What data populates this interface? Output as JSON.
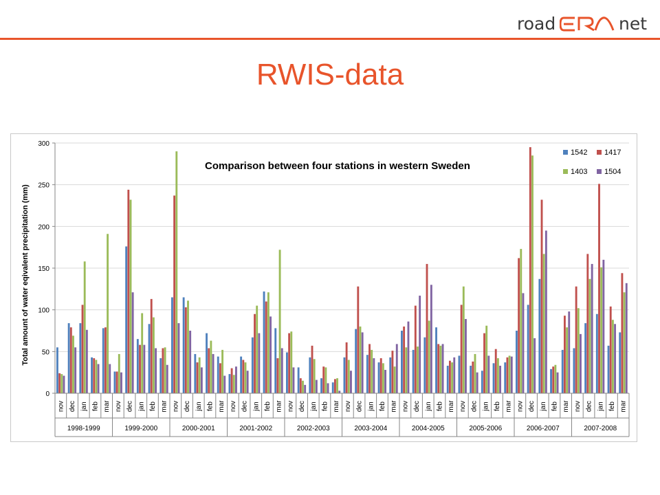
{
  "logo": {
    "left_text": "road",
    "right_text": "net",
    "mark_name": "road-era-net-logo-mark",
    "accent_color": "#e8542b"
  },
  "slide": {
    "title": "RWIS-data",
    "title_color": "#e8542b"
  },
  "chart_data": {
    "type": "bar",
    "title": "Comparison between four stations in western Sweden",
    "ylabel": "Total amount of water eqivalent precipitation (mm)",
    "xlabel": "",
    "ylim": [
      0,
      300
    ],
    "yticks": [
      0,
      50,
      100,
      150,
      200,
      250,
      300
    ],
    "grid": true,
    "legend_position": "top-right",
    "months": [
      "nov",
      "dec",
      "jan",
      "feb",
      "mar"
    ],
    "seasons": [
      "1998-1999",
      "1999-2000",
      "2000-2001",
      "2001-2002",
      "2002-2003",
      "2003-2004",
      "2004-2005",
      "2005-2006",
      "2006-2007",
      "2007-2008"
    ],
    "series": [
      {
        "name": "1542",
        "color": "#4f81bd",
        "values": [
          55,
          84,
          84,
          43,
          78,
          26,
          176,
          65,
          83,
          42,
          115,
          115,
          47,
          72,
          44,
          23,
          44,
          67,
          122,
          78,
          49,
          31,
          43,
          18,
          13,
          43,
          77,
          46,
          37,
          43,
          75,
          52,
          67,
          79,
          33,
          45,
          33,
          27,
          36,
          37,
          75,
          106,
          137,
          29,
          52,
          54,
          84,
          95,
          57,
          73
        ]
      },
      {
        "name": "1417",
        "color": "#c0504d",
        "values": [
          24,
          79,
          106,
          42,
          79,
          26,
          244,
          58,
          113,
          54,
          237,
          103,
          37,
          54,
          36,
          30,
          40,
          95,
          110,
          42,
          72,
          18,
          57,
          32,
          17,
          61,
          128,
          59,
          42,
          51,
          80,
          105,
          155,
          59,
          39,
          106,
          38,
          72,
          53,
          43,
          162,
          295,
          232,
          32,
          93,
          128,
          167,
          251,
          104,
          144
        ]
      },
      {
        "name": "1403",
        "color": "#9bbb59",
        "values": [
          23,
          69,
          158,
          40,
          191,
          47,
          232,
          96,
          91,
          55,
          290,
          111,
          43,
          63,
          52,
          22,
          37,
          105,
          121,
          172,
          74,
          15,
          41,
          31,
          18,
          40,
          80,
          52,
          36,
          32,
          55,
          56,
          87,
          57,
          37,
          128,
          47,
          81,
          42,
          45,
          173,
          285,
          167,
          34,
          79,
          102,
          137,
          151,
          88,
          121
        ]
      },
      {
        "name": "1504",
        "color": "#8064a2",
        "values": [
          21,
          55,
          76,
          35,
          35,
          25,
          121,
          58,
          54,
          34,
          84,
          75,
          31,
          47,
          21,
          32,
          27,
          72,
          92,
          54,
          31,
          10,
          16,
          12,
          3,
          27,
          73,
          42,
          28,
          59,
          86,
          117,
          130,
          59,
          43,
          89,
          25,
          45,
          33,
          44,
          120,
          66,
          195,
          25,
          98,
          71,
          155,
          160,
          83,
          132
        ]
      }
    ]
  }
}
